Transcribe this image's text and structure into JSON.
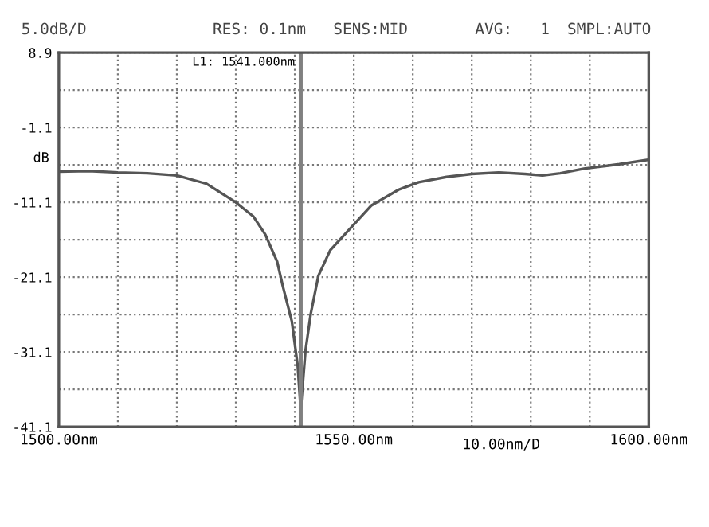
{
  "chart_data": {
    "type": "line",
    "x": [
      1500,
      1505,
      1510,
      1515,
      1520,
      1525,
      1530,
      1533,
      1535,
      1537,
      1538,
      1539.5,
      1540.5,
      1541,
      1541.8,
      1542.7,
      1544,
      1546,
      1549.5,
      1553,
      1557.6,
      1561,
      1565.7,
      1570,
      1574.6,
      1579,
      1582,
      1585,
      1589,
      1595,
      1600
    ],
    "series": [
      {
        "color": "#555555",
        "values": [
          -7.0,
          -6.9,
          -7.1,
          -7.2,
          -7.5,
          -8.6,
          -11.1,
          -13.0,
          -15.4,
          -19.0,
          -22.4,
          -27.0,
          -33.0,
          -38.8,
          -31.0,
          -26.0,
          -20.9,
          -17.5,
          -14.5,
          -11.5,
          -9.4,
          -8.4,
          -7.7,
          -7.3,
          -7.1,
          -7.3,
          -7.5,
          -7.2,
          -6.6,
          -6.0,
          -5.4
        ]
      }
    ],
    "xlim": [
      1500,
      1600
    ],
    "ylim": [
      -41.1,
      8.9
    ],
    "xticks": [
      {
        "value": 1500,
        "label": "1500.00nm"
      },
      {
        "value": 1510,
        "label": null
      },
      {
        "value": 1520,
        "label": null
      },
      {
        "value": 1530,
        "label": null
      },
      {
        "value": 1540,
        "label": null
      },
      {
        "value": 1550,
        "label": "1550.00nm"
      },
      {
        "value": 1560,
        "label": null
      },
      {
        "value": 1570,
        "label": null
      },
      {
        "value": 1580,
        "label": null
      },
      {
        "value": 1590,
        "label": null
      },
      {
        "value": 1600,
        "label": "1600.00nm"
      }
    ],
    "yticks": [
      8.9,
      {
        "value": 3.9,
        "label": null
      },
      -1.1,
      {
        "value": -6.1,
        "label": null
      },
      -11.1,
      {
        "value": -16.1,
        "label": null
      },
      -21.1,
      {
        "value": -26.1,
        "label": null
      },
      -31.1,
      {
        "value": -36.1,
        "label": null
      },
      -41.1
    ],
    "ylabel": "dB",
    "xlabel": "10.00nm/D",
    "grid": true,
    "line_style": "solid",
    "ref_lines": [
      {
        "axis": "x",
        "value": 1541,
        "label": "L1: 1541.000nm",
        "color": "#808080"
      }
    ],
    "annotations": [
      "5.0dB/D",
      "RES: 0.1nm",
      "SENS:MID",
      "AVG:   1",
      "SMPL:AUTO"
    ]
  }
}
